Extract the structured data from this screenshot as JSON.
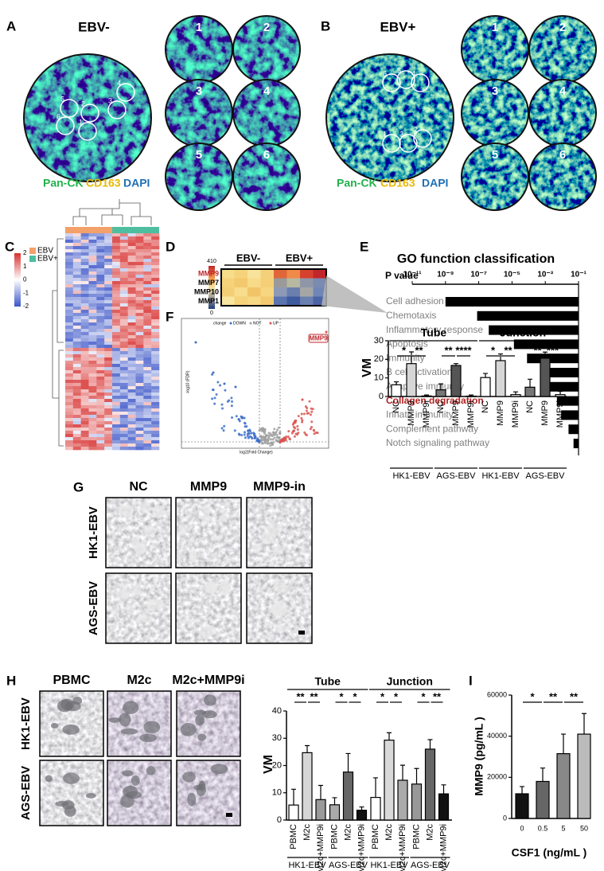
{
  "panels": {
    "A": {
      "label": "A",
      "title": "EBV-",
      "rois": [
        "1",
        "2",
        "3",
        "4",
        "5",
        "6"
      ],
      "stains": [
        "Pan-CK",
        "CD163",
        "DAPI"
      ]
    },
    "B": {
      "label": "B",
      "title": "EBV+",
      "rois": [
        "1",
        "2",
        "3",
        "4",
        "5",
        "6"
      ],
      "stains": [
        "Pan-CK",
        "CD163",
        "DAPI"
      ]
    },
    "C": {
      "label": "C",
      "legend": [
        "EBV",
        "EBV+"
      ],
      "scale_ticks": [
        2,
        1,
        0,
        -1,
        -2
      ]
    },
    "D": {
      "label": "D",
      "groups": [
        "EBV-",
        "EBV+"
      ],
      "genes": [
        "MMP9",
        "MMP7",
        "MMP10",
        "MMP1"
      ],
      "scale": [
        "410",
        "0"
      ]
    },
    "E": {
      "label": "E"
    },
    "F": {
      "label": "F",
      "highlight": "MMP9",
      "x_label": "log2(Fold Change)",
      "y_label": "-log10 (FDR)",
      "legend_title": "change",
      "legend": [
        "DOWN",
        "NOT",
        "UP"
      ]
    },
    "G": {
      "label": "G",
      "columns": [
        "NC",
        "MMP9",
        "MMP9-in"
      ],
      "rows": [
        "HK1-EBV",
        "AGS-EBV"
      ]
    },
    "H": {
      "label": "H",
      "columns": [
        "PBMC",
        "M2c",
        "M2c+MMP9i"
      ],
      "rows": [
        "HK1-EBV",
        "AGS-EBV"
      ]
    },
    "I": {
      "label": "I"
    }
  },
  "chart_data": [
    {
      "type": "bar",
      "orientation": "horizontal",
      "title": "GO function classification",
      "x_label": "P value",
      "log_scale": true,
      "xlim": [
        1e-11,
        0.1
      ],
      "xticks": [
        {
          "value": 1e-11,
          "label": "10⁻¹¹"
        },
        {
          "value": 1e-09,
          "label": "10⁻⁹"
        },
        {
          "value": 1e-07,
          "label": "10⁻⁷"
        },
        {
          "value": 1e-05,
          "label": "10⁻⁵"
        },
        {
          "value": 0.001,
          "label": "10⁻³"
        },
        {
          "value": 0.1,
          "label": "10⁻¹"
        }
      ],
      "categories": [
        "Cell adhesion",
        "Chemotaxis",
        "Inflammatory response",
        "Apoptosis",
        "Immunity",
        "B cell  activation",
        "Adaptive immunity",
        "Collagen degradation",
        "Innate immunity",
        "Complement pathway",
        "Notch signaling pathway"
      ],
      "values": [
        1e-09,
        8e-08,
        4e-07,
        1.3e-05,
        8e-05,
        0.0016,
        0.002,
        0.005,
        0.009,
        0.025,
        0.05
      ],
      "color": "#000000",
      "label_colors": [
        "#808080",
        "#808080",
        "#808080",
        "#808080",
        "#808080",
        "#808080",
        "#808080",
        "#b22222",
        "#808080",
        "#808080",
        "#808080"
      ]
    },
    {
      "type": "bar",
      "orientation": "vertical",
      "y_label": "VM",
      "ylim": [
        0,
        30
      ],
      "yticks": [
        0,
        10,
        20,
        30
      ],
      "categories": [
        "NC",
        "MMP9",
        "MMP9i",
        "NC",
        "MMP9",
        "MMP9i",
        "NC",
        "MMP9",
        "MMP9i",
        "NC",
        "MMP9",
        "MMP9i"
      ],
      "values": [
        6.3,
        17.7,
        0.3,
        3.6,
        16.7,
        0.2,
        10.2,
        19.3,
        1.0,
        5.0,
        20.6,
        1.0
      ],
      "errors": [
        1.6,
        6.3,
        0.5,
        3.2,
        1.0,
        0.6,
        2.2,
        3.6,
        1.5,
        4.3,
        3.3,
        1.8
      ],
      "colors": [
        "#ffffff",
        "#d6d6d6",
        "#ffffff",
        "#777777",
        "#555555",
        "#ffffff",
        "#ffffff",
        "#d6d6d6",
        "#ffffff",
        "#777777",
        "#555555",
        "#ffffff"
      ],
      "groups": [
        "Tube",
        "Junction"
      ],
      "subgroups": [
        "HK1-EBV",
        "AGS-EBV",
        "HK1-EBV",
        "AGS-EBV"
      ],
      "significance": [
        {
          "label": "*",
          "bars": [
            0,
            1
          ]
        },
        {
          "label": "**",
          "bars": [
            1,
            2
          ]
        },
        {
          "label": "**",
          "bars": [
            3,
            4
          ]
        },
        {
          "label": "****",
          "bars": [
            4,
            5
          ]
        },
        {
          "label": "*",
          "bars": [
            6,
            7
          ]
        },
        {
          "label": "**",
          "bars": [
            7,
            8
          ]
        },
        {
          "label": "**",
          "bars": [
            9,
            10
          ]
        },
        {
          "label": "***",
          "bars": [
            10,
            11
          ]
        }
      ]
    },
    {
      "type": "bar",
      "orientation": "vertical",
      "y_label": "VM",
      "ylim": [
        0,
        40
      ],
      "yticks": [
        0,
        10,
        20,
        30,
        40
      ],
      "categories": [
        "PBMC",
        "M2c",
        "M2c+MMP9i",
        "PBMC",
        "M2c",
        "M2c+MMP9i",
        "PBMC",
        "M2c",
        "M2c+MMP9i",
        "PBMC",
        "M2c",
        "M2c+MMP9i"
      ],
      "values": [
        5.5,
        24.7,
        7.5,
        5.6,
        17.6,
        3.6,
        8.3,
        29.3,
        14.6,
        13.2,
        26.0,
        9.6
      ],
      "errors": [
        5.8,
        2.6,
        5.2,
        2.6,
        6.8,
        1.2,
        7.2,
        2.7,
        5.5,
        5.7,
        3.5,
        3.3
      ],
      "colors": [
        "#ffffff",
        "#d6d6d6",
        "#9a9a9a",
        "#aaaaaa",
        "#666666",
        "#111111",
        "#ffffff",
        "#d9d9d9",
        "#aaaaaa",
        "#999999",
        "#666666",
        "#111111"
      ],
      "groups": [
        "Tube",
        "Junction"
      ],
      "subgroups": [
        "HK1-EBV",
        "AGS-EBV",
        "HK1-EBV",
        "AGS-EBV"
      ],
      "significance": [
        {
          "label": "**",
          "bars": [
            0,
            1
          ]
        },
        {
          "label": "**",
          "bars": [
            1,
            2
          ]
        },
        {
          "label": "*",
          "bars": [
            3,
            4
          ]
        },
        {
          "label": "*",
          "bars": [
            4,
            5
          ]
        },
        {
          "label": "*",
          "bars": [
            6,
            7
          ]
        },
        {
          "label": "*",
          "bars": [
            7,
            8
          ]
        },
        {
          "label": "*",
          "bars": [
            9,
            10
          ]
        },
        {
          "label": "**",
          "bars": [
            10,
            11
          ]
        }
      ]
    },
    {
      "type": "bar",
      "orientation": "vertical",
      "y_label": "MMP9 (pg/mL )",
      "x_label": "CSF1 (ng/mL )",
      "ylim": [
        0,
        60000
      ],
      "yticks": [
        0,
        20000,
        40000,
        60000
      ],
      "categories": [
        "0",
        "0.5",
        "5",
        "50"
      ],
      "values": [
        12000,
        18000,
        31500,
        41000
      ],
      "errors": [
        3500,
        6500,
        9500,
        10000
      ],
      "colors": [
        "#111111",
        "#666666",
        "#888888",
        "#bbbbbb"
      ],
      "significance": [
        {
          "label": "*",
          "bars": [
            0,
            1
          ]
        },
        {
          "label": "**",
          "bars": [
            1,
            2
          ]
        },
        {
          "label": "**",
          "bars": [
            2,
            3
          ]
        }
      ]
    }
  ]
}
